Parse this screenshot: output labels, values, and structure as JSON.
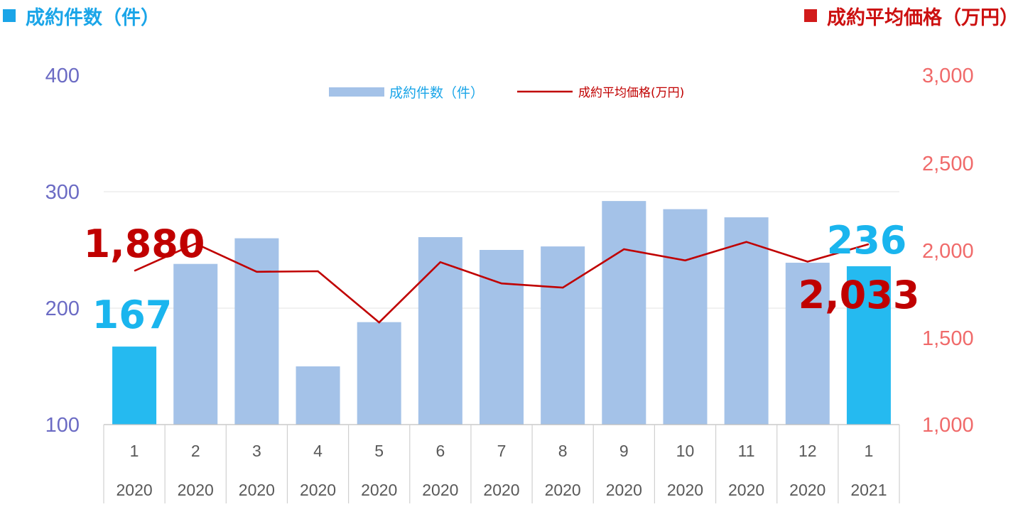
{
  "legend_top": {
    "left": "成約件数（件）",
    "right": "成約平均価格（万円）"
  },
  "colors": {
    "bar": "#a4c2e8",
    "bar_highlight": "#25baf0",
    "line": "#c00000",
    "left_axis": "#6b6bc4",
    "right_axis": "#f06a6a"
  },
  "chart_data": {
    "type": "bar",
    "categories": [
      "1",
      "2",
      "3",
      "4",
      "5",
      "6",
      "7",
      "8",
      "9",
      "10",
      "11",
      "12",
      "1"
    ],
    "category_years": [
      "2020",
      "2020",
      "2020",
      "2020",
      "2020",
      "2020",
      "2020",
      "2020",
      "2020",
      "2020",
      "2020",
      "2020",
      "2021"
    ],
    "series": [
      {
        "name": "成約件数（件）",
        "type": "bar",
        "axis": "left",
        "values": [
          167,
          238,
          260,
          150,
          188,
          261,
          250,
          253,
          292,
          285,
          278,
          239,
          236
        ],
        "highlight_indices": [
          0,
          12
        ]
      },
      {
        "name": "成約平均価格(万円)",
        "type": "line",
        "axis": "right",
        "values": [
          1880,
          2036,
          1875,
          1878,
          1585,
          1930,
          1808,
          1784,
          2004,
          1940,
          2046,
          1933,
          2033
        ]
      }
    ],
    "left_axis": {
      "ylim": [
        100,
        400
      ],
      "ticks": [
        "100",
        "200",
        "300",
        "400"
      ]
    },
    "right_axis": {
      "ylim": [
        1000,
        3000
      ],
      "ticks": [
        "1,000",
        "1,500",
        "2,000",
        "2,500",
        "3,000"
      ]
    },
    "annotations": {
      "first_count": "167",
      "last_count": "236",
      "first_price": "1,880",
      "last_price": "2,033"
    },
    "grid": true,
    "legend": "top-center"
  }
}
